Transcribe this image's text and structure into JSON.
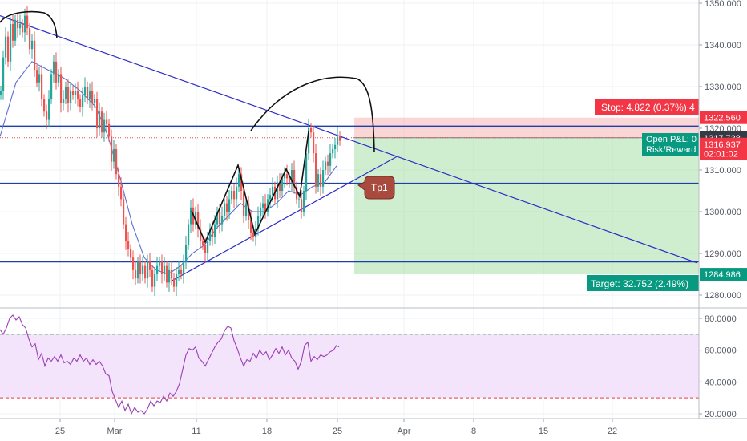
{
  "chart_data": [
    {
      "type": "candlestick",
      "title": "",
      "x_ticks": [
        "25",
        "Mar",
        "11",
        "18",
        "25",
        "Apr",
        "8",
        "15",
        "22"
      ],
      "y_ticks": [
        "1280.000",
        "1290.000",
        "1300.000",
        "1310.000",
        "1320.000",
        "1330.000",
        "1340.000",
        "1350.000"
      ],
      "ylim": [
        1276,
        1351
      ],
      "grid": true,
      "colors": {
        "up": "#26a69a",
        "down": "#ef5350",
        "ma": "#5d6fd1",
        "trend": "#2c2cc8",
        "pen": "#111111"
      },
      "horizontal_levels": [
        1320.5,
        1306.8,
        1288.0
      ],
      "current_price": 1317.738,
      "candle_close_points": [
        [
          0,
          1329
        ],
        [
          3,
          1337
        ],
        [
          6,
          1342
        ],
        [
          9,
          1336
        ],
        [
          12,
          1345
        ],
        [
          15,
          1341
        ],
        [
          18,
          1346
        ],
        [
          21,
          1344
        ],
        [
          24,
          1345
        ],
        [
          27,
          1343
        ],
        [
          30,
          1347
        ],
        [
          33,
          1344
        ],
        [
          36,
          1339
        ],
        [
          39,
          1341
        ],
        [
          42,
          1334
        ],
        [
          45,
          1331
        ],
        [
          48,
          1333
        ],
        [
          51,
          1327
        ],
        [
          54,
          1324
        ],
        [
          57,
          1322
        ],
        [
          60,
          1327
        ],
        [
          63,
          1333
        ],
        [
          66,
          1336
        ],
        [
          69,
          1331
        ],
        [
          72,
          1333
        ],
        [
          75,
          1326
        ],
        [
          78,
          1327
        ],
        [
          81,
          1330
        ],
        [
          84,
          1326
        ],
        [
          87,
          1329
        ],
        [
          90,
          1328
        ],
        [
          93,
          1329
        ],
        [
          96,
          1327
        ],
        [
          99,
          1325
        ],
        [
          102,
          1328
        ],
        [
          105,
          1330
        ],
        [
          108,
          1327
        ],
        [
          111,
          1329
        ],
        [
          114,
          1326
        ],
        [
          117,
          1327
        ],
        [
          120,
          1320
        ],
        [
          123,
          1324
        ],
        [
          126,
          1319
        ],
        [
          129,
          1322
        ],
        [
          132,
          1321
        ],
        [
          135,
          1318
        ],
        [
          138,
          1312
        ],
        [
          141,
          1315
        ],
        [
          144,
          1309
        ],
        [
          147,
          1306
        ],
        [
          150,
          1303
        ],
        [
          153,
          1297
        ],
        [
          156,
          1293
        ],
        [
          159,
          1291
        ],
        [
          162,
          1289
        ],
        [
          165,
          1286
        ],
        [
          168,
          1284
        ],
        [
          171,
          1288
        ],
        [
          174,
          1285
        ],
        [
          177,
          1287
        ],
        [
          180,
          1284
        ],
        [
          183,
          1288
        ],
        [
          186,
          1286
        ],
        [
          189,
          1282
        ],
        [
          192,
          1285
        ],
        [
          195,
          1287
        ],
        [
          198,
          1288
        ],
        [
          201,
          1285
        ],
        [
          204,
          1287
        ],
        [
          207,
          1283
        ],
        [
          210,
          1286
        ],
        [
          213,
          1284
        ],
        [
          216,
          1282
        ],
        [
          219,
          1285
        ],
        [
          222,
          1286
        ],
        [
          225,
          1285
        ],
        [
          228,
          1288
        ],
        [
          231,
          1292
        ],
        [
          234,
          1297
        ],
        [
          237,
          1301
        ],
        [
          240,
          1297
        ],
        [
          243,
          1300
        ],
        [
          246,
          1296
        ],
        [
          249,
          1293
        ],
        [
          252,
          1292
        ],
        [
          255,
          1290
        ],
        [
          258,
          1293
        ],
        [
          261,
          1296
        ],
        [
          264,
          1294
        ],
        [
          267,
          1297
        ],
        [
          270,
          1300
        ],
        [
          273,
          1297
        ],
        [
          276,
          1299
        ],
        [
          279,
          1302
        ],
        [
          282,
          1300
        ],
        [
          285,
          1303
        ],
        [
          288,
          1305
        ],
        [
          291,
          1303
        ],
        [
          294,
          1306
        ],
        [
          297,
          1309
        ],
        [
          300,
          1305
        ],
        [
          303,
          1299
        ],
        [
          306,
          1302
        ],
        [
          309,
          1298
        ],
        [
          312,
          1295
        ],
        [
          315,
          1294
        ],
        [
          318,
          1296
        ],
        [
          321,
          1299
        ],
        [
          324,
          1301
        ],
        [
          327,
          1302
        ],
        [
          330,
          1300
        ],
        [
          333,
          1303
        ],
        [
          336,
          1304
        ],
        [
          339,
          1306
        ],
        [
          342,
          1303
        ],
        [
          345,
          1307
        ],
        [
          348,
          1305
        ],
        [
          351,
          1308
        ],
        [
          354,
          1309
        ],
        [
          357,
          1308
        ],
        [
          360,
          1307
        ],
        [
          363,
          1310
        ],
        [
          366,
          1306
        ],
        [
          369,
          1303
        ],
        [
          372,
          1303
        ],
        [
          375,
          1300
        ],
        [
          378,
          1305
        ],
        [
          381,
          1314
        ],
        [
          384,
          1320
        ],
        [
          387,
          1319
        ],
        [
          390,
          1314
        ],
        [
          393,
          1306
        ],
        [
          396,
          1309
        ],
        [
          399,
          1306
        ],
        [
          402,
          1310
        ],
        [
          405,
          1312
        ],
        [
          408,
          1311
        ],
        [
          411,
          1314
        ],
        [
          414,
          1315
        ],
        [
          417,
          1316
        ],
        [
          420,
          1318
        ],
        [
          423,
          1317
        ]
      ],
      "ma_points": [
        [
          0,
          1318
        ],
        [
          20,
          1331
        ],
        [
          40,
          1336
        ],
        [
          60,
          1334
        ],
        [
          80,
          1332
        ],
        [
          100,
          1329
        ],
        [
          120,
          1325
        ],
        [
          135,
          1318
        ],
        [
          150,
          1308
        ],
        [
          165,
          1297
        ],
        [
          180,
          1289
        ],
        [
          195,
          1286
        ],
        [
          210,
          1285
        ],
        [
          225,
          1287
        ],
        [
          240,
          1290
        ],
        [
          255,
          1292
        ],
        [
          270,
          1296
        ],
        [
          285,
          1299
        ],
        [
          300,
          1302
        ],
        [
          315,
          1300
        ],
        [
          330,
          1300
        ],
        [
          345,
          1302
        ],
        [
          360,
          1305
        ],
        [
          375,
          1304
        ],
        [
          390,
          1306
        ],
        [
          405,
          1307
        ],
        [
          420,
          1311
        ]
      ],
      "trendlines": [
        [
          [
            0,
            1347
          ],
          [
            870,
            1287.7
          ]
        ],
        [
          [
            215,
            1283.5
          ],
          [
            495,
            1313.2
          ]
        ]
      ],
      "position": {
        "entry": 1317.738,
        "stop": 1322.56,
        "target": 1284.986,
        "x_start": 442,
        "x_end": 872
      },
      "axis_badges": [
        {
          "label": "1322.560",
          "value": 1322.56,
          "color": "#f23645"
        },
        {
          "label": "1317.738",
          "value": 1317.738,
          "color": "#363a45"
        },
        {
          "label": "1316.937",
          "value": 1316.2,
          "color": "#f23645"
        },
        {
          "label": "02:01:02",
          "value": 1313.9,
          "color": "#f23645"
        },
        {
          "label": "1284.986",
          "value": 1284.986,
          "color": "#089981"
        }
      ],
      "labels": {
        "stop": "Stop: 4.822 (0.37%) 4",
        "target": "Target: 32.752 (2.49%)",
        "pnl": "Open P&L: 0",
        "risk_reward": "Risk/Reward",
        "tp": "Tp1"
      }
    },
    {
      "type": "line",
      "title": "",
      "y_ticks": [
        "20.0000",
        "40.0000",
        "60.0000",
        "80.0000"
      ],
      "ylim": [
        17,
        85
      ],
      "levels": [
        70,
        30
      ],
      "band": [
        30,
        70
      ],
      "colors": {
        "line": "#9b3fb5",
        "band": "#f3e4fb",
        "upper": "#26a65b",
        "lower": "#e0403a"
      },
      "points": [
        [
          0,
          73
        ],
        [
          4,
          70
        ],
        [
          8,
          74
        ],
        [
          12,
          80
        ],
        [
          16,
          82
        ],
        [
          20,
          79
        ],
        [
          24,
          81
        ],
        [
          28,
          76
        ],
        [
          32,
          74
        ],
        [
          36,
          67
        ],
        [
          40,
          62
        ],
        [
          44,
          64
        ],
        [
          48,
          54
        ],
        [
          52,
          58
        ],
        [
          56,
          50
        ],
        [
          60,
          55
        ],
        [
          64,
          53
        ],
        [
          68,
          56
        ],
        [
          72,
          53
        ],
        [
          76,
          57
        ],
        [
          80,
          52
        ],
        [
          84,
          53
        ],
        [
          88,
          51
        ],
        [
          92,
          55
        ],
        [
          96,
          53
        ],
        [
          100,
          57
        ],
        [
          104,
          53
        ],
        [
          108,
          55
        ],
        [
          112,
          51
        ],
        [
          116,
          54
        ],
        [
          120,
          51
        ],
        [
          124,
          53
        ],
        [
          128,
          50
        ],
        [
          132,
          45
        ],
        [
          136,
          44
        ],
        [
          140,
          34
        ],
        [
          144,
          29
        ],
        [
          148,
          24
        ],
        [
          152,
          28
        ],
        [
          156,
          22
        ],
        [
          160,
          26
        ],
        [
          164,
          20
        ],
        [
          168,
          24
        ],
        [
          172,
          21
        ],
        [
          176,
          22
        ],
        [
          180,
          20
        ],
        [
          184,
          23
        ],
        [
          188,
          28
        ],
        [
          192,
          25
        ],
        [
          196,
          28
        ],
        [
          200,
          27
        ],
        [
          204,
          31
        ],
        [
          208,
          28
        ],
        [
          212,
          33
        ],
        [
          216,
          31
        ],
        [
          220,
          34
        ],
        [
          224,
          39
        ],
        [
          228,
          48
        ],
        [
          232,
          57
        ],
        [
          236,
          61
        ],
        [
          240,
          60
        ],
        [
          244,
          62
        ],
        [
          248,
          55
        ],
        [
          252,
          53
        ],
        [
          256,
          50
        ],
        [
          260,
          54
        ],
        [
          264,
          58
        ],
        [
          268,
          62
        ],
        [
          272,
          65
        ],
        [
          276,
          67
        ],
        [
          280,
          72
        ],
        [
          284,
          75
        ],
        [
          288,
          74
        ],
        [
          292,
          66
        ],
        [
          296,
          61
        ],
        [
          300,
          55
        ],
        [
          304,
          50
        ],
        [
          308,
          54
        ],
        [
          312,
          53
        ],
        [
          316,
          58
        ],
        [
          320,
          55
        ],
        [
          324,
          60
        ],
        [
          328,
          57
        ],
        [
          332,
          59
        ],
        [
          336,
          54
        ],
        [
          340,
          57
        ],
        [
          344,
          61
        ],
        [
          348,
          58
        ],
        [
          352,
          62
        ],
        [
          356,
          57
        ],
        [
          360,
          60
        ],
        [
          364,
          55
        ],
        [
          368,
          53
        ],
        [
          372,
          48
        ],
        [
          376,
          53
        ],
        [
          380,
          63
        ],
        [
          384,
          65
        ],
        [
          388,
          53
        ],
        [
          392,
          56
        ],
        [
          396,
          54
        ],
        [
          400,
          57
        ],
        [
          404,
          56
        ],
        [
          408,
          57
        ],
        [
          412,
          59
        ],
        [
          416,
          60
        ],
        [
          420,
          63
        ],
        [
          423,
          62
        ]
      ]
    }
  ]
}
